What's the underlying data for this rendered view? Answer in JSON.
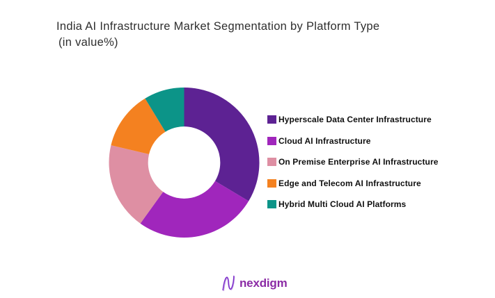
{
  "title": {
    "line1": "India AI Infrastructure Market Segmentation by Platform Type",
    "line2": "(in value%)"
  },
  "chart_data": {
    "type": "pie",
    "subtype": "donut",
    "title": "India AI Infrastructure Market Segmentation by Platform Type (in value%)",
    "unit": "value %",
    "start_angle_deg": 0,
    "direction": "clockwise",
    "inner_radius_ratio": 0.48,
    "legend_position": "right",
    "data_labels_shown": false,
    "segments": [
      {
        "label": "Hyperscale Data Center Infrastructure",
        "value": 33.6,
        "color": "#5D2293"
      },
      {
        "label": "Cloud AI Infrastructure",
        "value": 26.3,
        "color": "#A026BC"
      },
      {
        "label": "On Premise Enterprise AI Infrastructure",
        "value": 18.8,
        "color": "#DE8FA3"
      },
      {
        "label": "Edge and Telecom AI Infrastructure",
        "value": 12.6,
        "color": "#F48120"
      },
      {
        "label": "Hybrid Multi Cloud AI Platforms",
        "value": 8.7,
        "color": "#0C9488"
      }
    ]
  },
  "logo": {
    "text": "nexdigm",
    "color": "#8B2BA5",
    "mark_icon": "nexdigm-n-wave-icon",
    "mark_color_main": "#7B2CC9",
    "mark_color_light": "#C9A6E8"
  }
}
